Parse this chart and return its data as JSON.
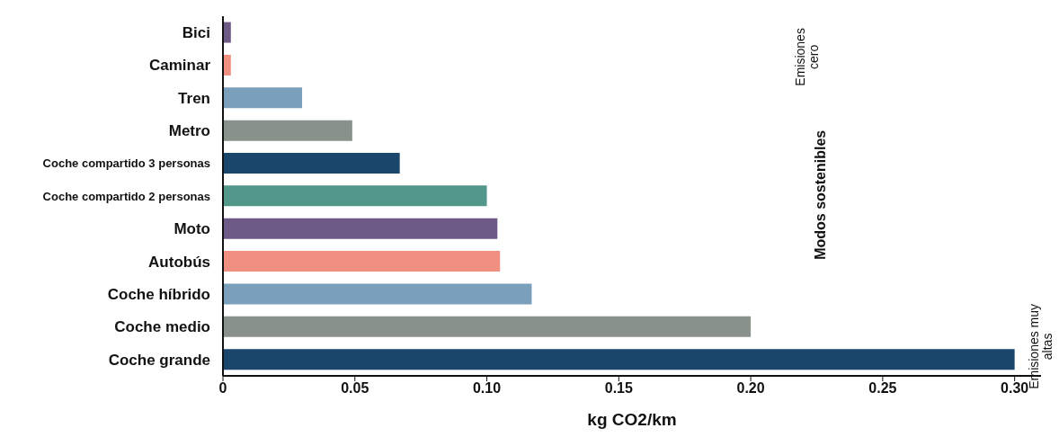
{
  "chart_data": {
    "type": "bar",
    "orientation": "horizontal",
    "xlabel": "kg CO2/km",
    "categories": [
      "Bici",
      "Caminar",
      "Tren",
      "Metro",
      "Coche compartido 3 personas",
      "Coche compartido 2 personas",
      "Moto",
      "Autobús",
      "Coche híbrido",
      "Coche medio",
      "Coche grande"
    ],
    "values": [
      0.003,
      0.003,
      0.03,
      0.049,
      0.067,
      0.1,
      0.104,
      0.105,
      0.117,
      0.2,
      0.3
    ],
    "colors": [
      "#6e5a87",
      "#ef8f7f",
      "#7a9fba",
      "#89918b",
      "#1a466b",
      "#52978a",
      "#6e5a87",
      "#ef8f7f",
      "#7a9fba",
      "#89918b",
      "#1a466b"
    ],
    "xlim": [
      0,
      0.31
    ],
    "xticks": [
      {
        "value": 0,
        "label": "0"
      },
      {
        "value": 0.05,
        "label": "0.05"
      },
      {
        "value": 0.1,
        "label": "0.10"
      },
      {
        "value": 0.15,
        "label": "0.15"
      },
      {
        "value": 0.2,
        "label": "0.20"
      },
      {
        "value": 0.25,
        "label": "0.25"
      },
      {
        "value": 0.3,
        "label": "0.30"
      }
    ],
    "annotations": [
      "Emisiones cero",
      "Modos sostenibles",
      "Emisiones muy altas"
    ],
    "grid": false,
    "legend": false
  }
}
